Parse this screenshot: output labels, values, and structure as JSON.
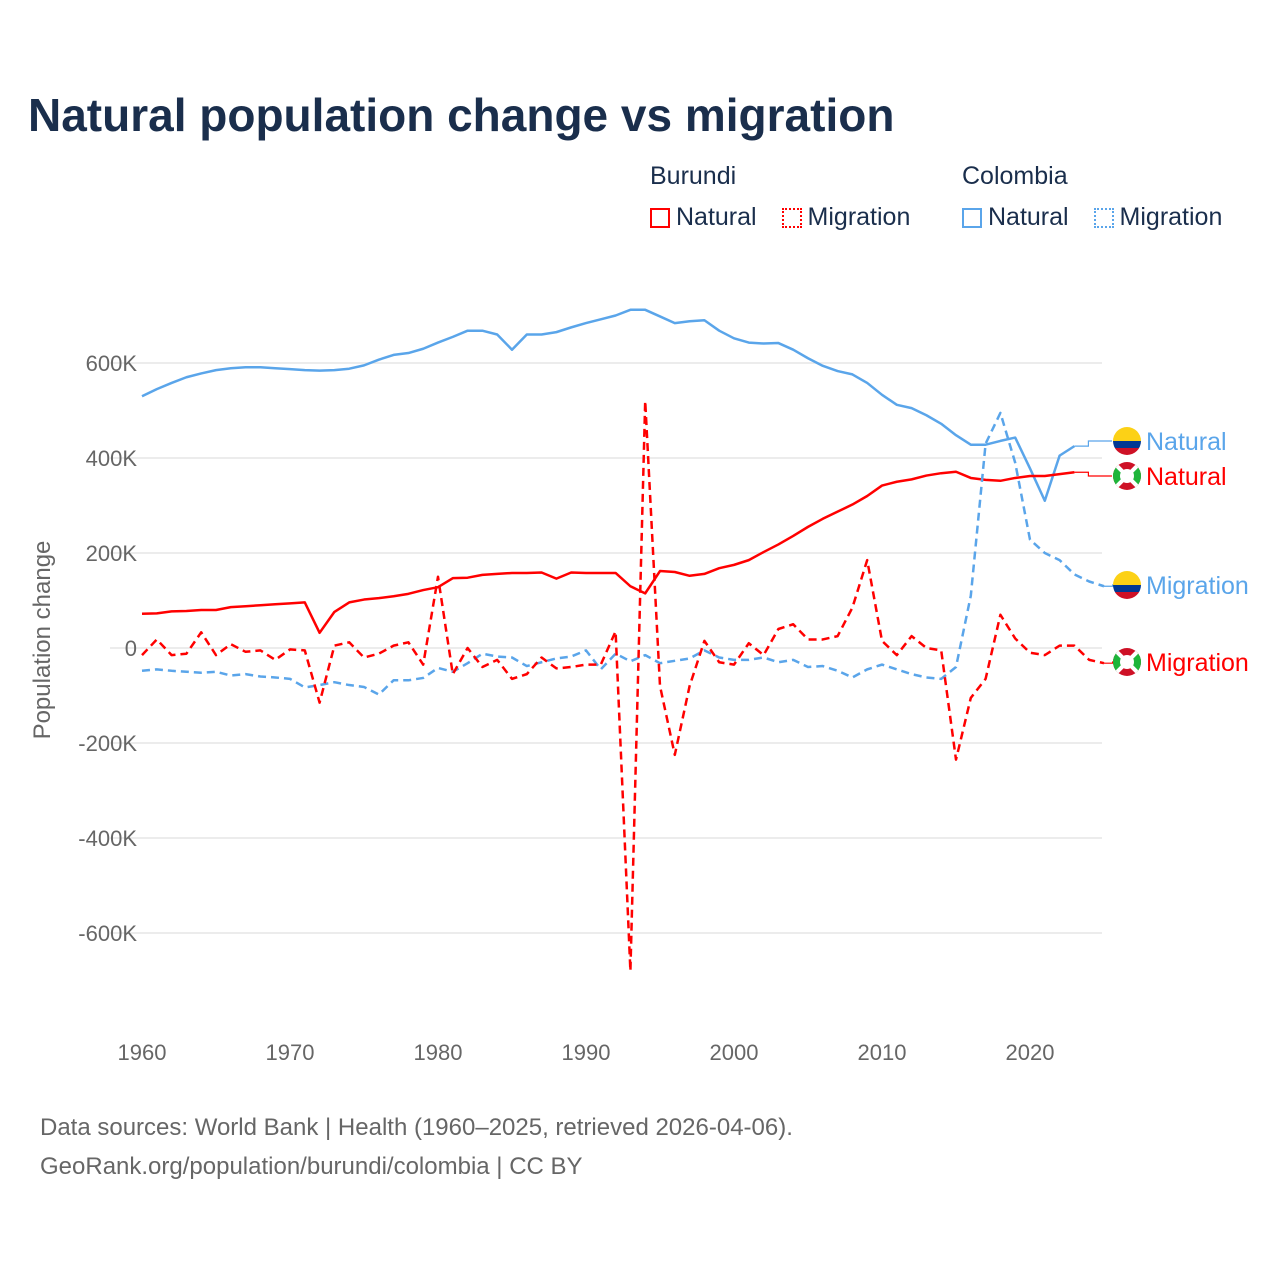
{
  "title": "Natural population change vs migration",
  "legend": [
    {
      "group": "Burundi",
      "items": [
        {
          "label": "Natural",
          "style": "solid",
          "color": "#ff0000"
        },
        {
          "label": "Migration",
          "style": "dotted",
          "color": "#ff0000"
        }
      ]
    },
    {
      "group": "Colombia",
      "items": [
        {
          "label": "Natural",
          "style": "solid",
          "color": "#5aa5ea"
        },
        {
          "label": "Migration",
          "style": "dotted",
          "color": "#5aa5ea"
        }
      ]
    }
  ],
  "footer": {
    "line1": "Data sources: World Bank | Health (1960–2025, retrieved 2026-04-06).",
    "line2": "GeoRank.org/population/burundi/colombia | CC BY"
  },
  "chart_data": {
    "type": "line",
    "title": "Natural population change vs migration",
    "xlabel": "",
    "ylabel": "Population change",
    "xlim": [
      1960,
      2025
    ],
    "ylim": [
      -700000,
      750000
    ],
    "x_ticks": [
      "1960",
      "1970",
      "1980",
      "1990",
      "2000",
      "2010",
      "2020"
    ],
    "y_ticks": [
      {
        "value": 600000,
        "label": "600K"
      },
      {
        "value": 400000,
        "label": "400K"
      },
      {
        "value": 200000,
        "label": "200K"
      },
      {
        "value": 0,
        "label": "0"
      },
      {
        "value": -200000,
        "label": "-200K"
      },
      {
        "value": -400000,
        "label": "-400K"
      },
      {
        "value": -600000,
        "label": "-600K"
      }
    ],
    "grid": true,
    "legend_placement": "top-right",
    "series": [
      {
        "name": "Colombia Natural",
        "end_label": "Natural",
        "color": "#5aa5ea",
        "dash": false,
        "flag": "colombia",
        "start_year": 1960,
        "values": [
          530,
          545,
          558,
          570,
          578,
          585,
          589,
          591,
          591,
          589,
          587,
          585,
          584,
          585,
          588,
          595,
          607,
          617,
          621,
          630,
          643,
          655,
          668,
          668,
          660,
          628,
          660,
          660,
          665,
          675,
          684,
          692,
          700,
          712,
          712,
          698,
          684,
          688,
          690,
          668,
          652,
          643,
          641,
          642,
          628,
          610,
          594,
          583,
          576,
          558,
          533,
          512,
          505,
          490,
          472,
          448,
          428,
          428,
          436,
          443,
          378,
          310,
          405,
          425
        ]
      },
      {
        "name": "Burundi Natural",
        "end_label": "Natural",
        "color": "#ff0000",
        "dash": false,
        "flag": "burundi",
        "start_year": 1960,
        "values": [
          72,
          73,
          77,
          78,
          80,
          80,
          86,
          88,
          90,
          92,
          94,
          96,
          32,
          76,
          96,
          102,
          105,
          109,
          114,
          122,
          128,
          147,
          148,
          154,
          156,
          158,
          158,
          159,
          146,
          159,
          158,
          158,
          158,
          130,
          115,
          162,
          160,
          152,
          156,
          168,
          175,
          185,
          202,
          218,
          236,
          255,
          272,
          287,
          302,
          320,
          342,
          350,
          355,
          363,
          368,
          371,
          358,
          354,
          352,
          358,
          362,
          362,
          366,
          370
        ]
      },
      {
        "name": "Colombia Migration",
        "end_label": "Migration",
        "color": "#5aa5ea",
        "dash": true,
        "flag": "colombia",
        "start_year": 1960,
        "values": [
          -48,
          -45,
          -48,
          -50,
          -52,
          -50,
          -58,
          -55,
          -60,
          -62,
          -65,
          -83,
          -78,
          -72,
          -78,
          -82,
          -98,
          -68,
          -68,
          -63,
          -42,
          -50,
          -32,
          -12,
          -18,
          -20,
          -38,
          -30,
          -22,
          -18,
          -5,
          -45,
          -12,
          -28,
          -15,
          -32,
          -27,
          -22,
          -5,
          -20,
          -25,
          -25,
          -20,
          -30,
          -25,
          -40,
          -38,
          -48,
          -62,
          -45,
          -35,
          -45,
          -55,
          -62,
          -65,
          -40,
          110,
          430,
          495,
          390,
          228,
          200,
          185,
          155,
          140,
          130
        ]
      },
      {
        "name": "Burundi Migration",
        "end_label": "Migration",
        "color": "#ff0000",
        "dash": true,
        "flag": "burundi",
        "start_year": 1960,
        "values": [
          -15,
          18,
          -15,
          -12,
          33,
          -15,
          8,
          -8,
          -5,
          -25,
          -3,
          -5,
          -115,
          5,
          12,
          -20,
          -12,
          5,
          12,
          -35,
          150,
          -55,
          0,
          -40,
          -25,
          -65,
          -55,
          -20,
          -43,
          -40,
          -35,
          -35,
          35,
          -680,
          520,
          -80,
          -225,
          -80,
          15,
          -30,
          -35,
          10,
          -15,
          40,
          50,
          18,
          18,
          25,
          85,
          185,
          15,
          -15,
          25,
          0,
          -5,
          -235,
          -105,
          -65,
          70,
          20,
          -10,
          -15,
          5,
          5,
          -25,
          -32
        ]
      }
    ],
    "values_unit": "thousands"
  }
}
